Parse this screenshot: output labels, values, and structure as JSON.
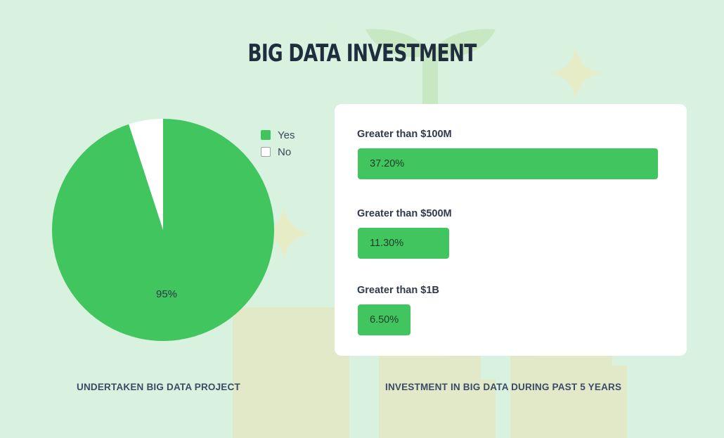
{
  "title": "BIG DATA INVESTMENT",
  "colors": {
    "green": "#41c55f",
    "background": "#d9f2e0",
    "white": "#ffffff"
  },
  "chart_data": [
    {
      "type": "pie",
      "title": "",
      "caption": "UNDERTAKEN BIG DATA PROJECT",
      "slices": [
        {
          "label": "Yes",
          "value": 95,
          "display": "95%",
          "color": "#41c55f"
        },
        {
          "label": "No",
          "value": 5,
          "display": "",
          "color": "#ffffff"
        }
      ],
      "legend": [
        "Yes",
        "No"
      ],
      "legend_position": "top-right"
    },
    {
      "type": "bar",
      "orientation": "horizontal",
      "caption": "INVESTMENT IN BIG DATA DURING PAST 5 YEARS",
      "categories": [
        "Greater than $100M",
        "Greater than $500M",
        "Greater than $1B"
      ],
      "values": [
        37.2,
        11.3,
        6.5
      ],
      "value_labels": [
        "37.20%",
        "11.30%",
        "6.50%"
      ],
      "unit": "%",
      "xlim": [
        0,
        37.2
      ]
    }
  ]
}
